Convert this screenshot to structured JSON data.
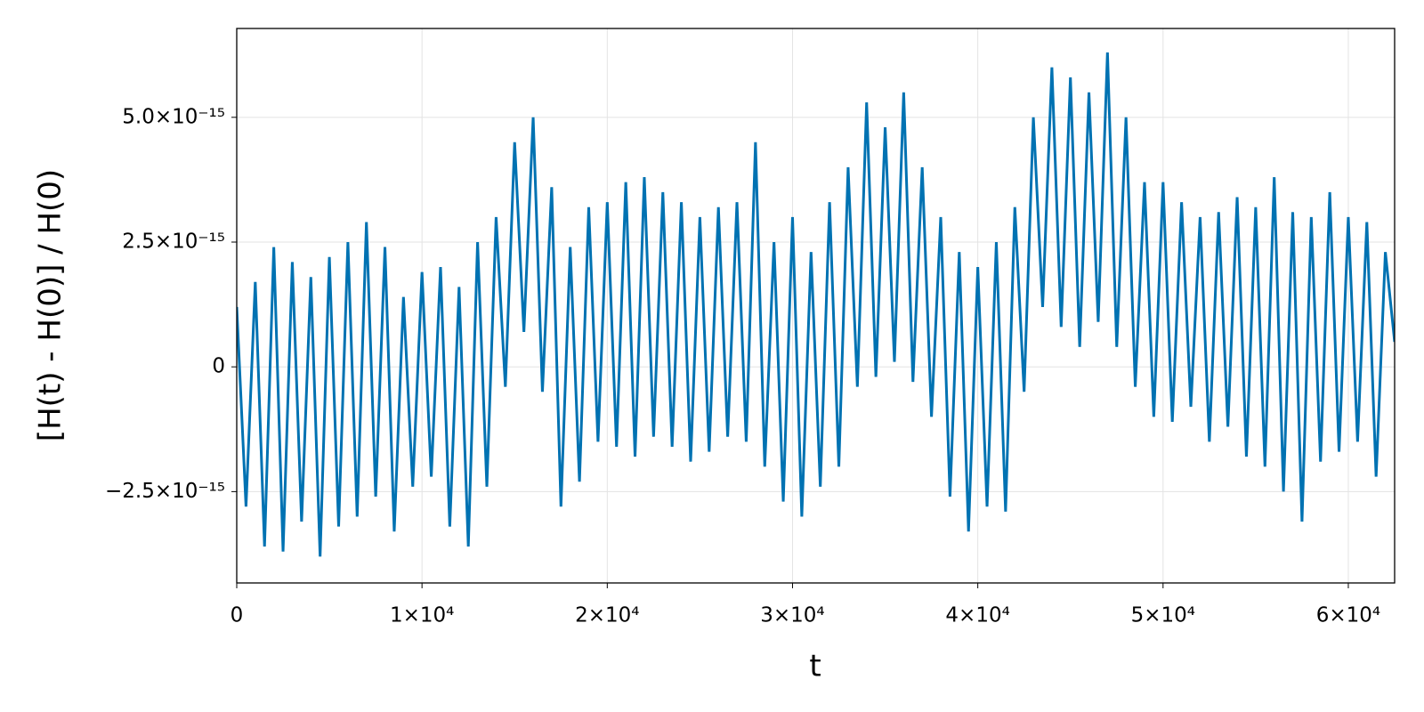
{
  "chart_data": {
    "type": "line",
    "xlabel": "t",
    "ylabel": "[H(t) - H(0)] / H(0)",
    "x": [
      0,
      500,
      1000,
      1500,
      2000,
      2500,
      3000,
      3500,
      4000,
      4500,
      5000,
      5500,
      6000,
      6500,
      7000,
      7500,
      8000,
      8500,
      9000,
      9500,
      10000,
      10500,
      11000,
      11500,
      12000,
      12500,
      13000,
      13500,
      14000,
      14500,
      15000,
      15500,
      16000,
      16500,
      17000,
      17500,
      18000,
      18500,
      19000,
      19500,
      20000,
      20500,
      21000,
      21500,
      22000,
      22500,
      23000,
      23500,
      24000,
      24500,
      25000,
      25500,
      26000,
      26500,
      27000,
      27500,
      28000,
      28500,
      29000,
      29500,
      30000,
      30500,
      31000,
      31500,
      32000,
      32500,
      33000,
      33500,
      34000,
      34500,
      35000,
      35500,
      36000,
      36500,
      37000,
      37500,
      38000,
      38500,
      39000,
      39500,
      40000,
      40500,
      41000,
      41500,
      42000,
      42500,
      43000,
      43500,
      44000,
      44500,
      45000,
      45500,
      46000,
      46500,
      47000,
      47500,
      48000,
      48500,
      49000,
      49500,
      50000,
      50500,
      51000,
      51500,
      52000,
      52500,
      53000,
      53500,
      54000,
      54500,
      55000,
      55500,
      56000,
      56500,
      57000,
      57500,
      58000,
      58500,
      59000,
      59500,
      60000,
      60500,
      61000,
      61500,
      62000,
      62500
    ],
    "series": [
      {
        "color": "#0072b2",
        "values": [
          1.2e-15,
          -2.8e-15,
          1.7e-15,
          -3.6e-15,
          2.4e-15,
          -3.7e-15,
          2.1e-15,
          -3.1e-15,
          1.8e-15,
          -3.8e-15,
          2.2e-15,
          -3.2e-15,
          2.5e-15,
          -3e-15,
          2.9e-15,
          -2.6e-15,
          2.4e-15,
          -3.3e-15,
          1.4e-15,
          -2.4e-15,
          1.9e-15,
          -2.2e-15,
          2e-15,
          -3.2e-15,
          1.6e-15,
          -3.6e-15,
          2.5e-15,
          -2.4e-15,
          3e-15,
          -4e-16,
          4.5e-15,
          7e-16,
          5e-15,
          -5e-16,
          3.6e-15,
          -2.8e-15,
          2.4e-15,
          -2.3e-15,
          3.2e-15,
          -1.5e-15,
          3.3e-15,
          -1.6e-15,
          3.7e-15,
          -1.8e-15,
          3.8e-15,
          -1.4e-15,
          3.5e-15,
          -1.6e-15,
          3.3e-15,
          -1.9e-15,
          3e-15,
          -1.7e-15,
          3.2e-15,
          -1.4e-15,
          3.3e-15,
          -1.5e-15,
          4.5e-15,
          -2e-15,
          2.5e-15,
          -2.7e-15,
          3e-15,
          -3e-15,
          2.3e-15,
          -2.4e-15,
          3.3e-15,
          -2e-15,
          4e-15,
          -4e-16,
          5.3e-15,
          -2e-16,
          4.8e-15,
          1e-16,
          5.5e-15,
          -3e-16,
          4e-15,
          -1e-15,
          3e-15,
          -2.6e-15,
          2.3e-15,
          -3.3e-15,
          2e-15,
          -2.8e-15,
          2.5e-15,
          -2.9e-15,
          3.2e-15,
          -5e-16,
          5e-15,
          1.2e-15,
          6e-15,
          8e-16,
          5.8e-15,
          4e-16,
          5.5e-15,
          9e-16,
          6.3e-15,
          4e-16,
          5e-15,
          -4e-16,
          3.7e-15,
          -1e-15,
          3.7e-15,
          -1.1e-15,
          3.3e-15,
          -8e-16,
          3e-15,
          -1.5e-15,
          3.1e-15,
          -1.2e-15,
          3.4e-15,
          -1.8e-15,
          3.2e-15,
          -2e-15,
          3.8e-15,
          -2.5e-15,
          3.1e-15,
          -3.1e-15,
          3e-15,
          -1.9e-15,
          3.5e-15,
          -1.7e-15,
          3e-15,
          -1.5e-15,
          2.9e-15,
          -2.2e-15,
          2.3e-15,
          5e-16
        ]
      }
    ],
    "xlim": [
      0,
      62500
    ],
    "xticks": [
      0,
      {
        "value": 10000,
        "label": "1×10⁴"
      },
      {
        "value": 20000,
        "label": "2×10⁴"
      },
      {
        "value": 30000,
        "label": "3×10⁴"
      },
      {
        "value": 40000,
        "label": "4×10⁴"
      },
      {
        "value": 50000,
        "label": "5×10⁴"
      },
      {
        "value": 60000,
        "label": "6×10⁴"
      }
    ],
    "ylim": [
      -4.33e-15,
      6.78e-15
    ],
    "yticks": [
      {
        "value": -2.5e-15,
        "label": "−2.5×10⁻¹⁵"
      },
      0,
      {
        "value": 2.5e-15,
        "label": "2.5×10⁻¹⁵"
      },
      {
        "value": 5e-15,
        "label": "5.0×10⁻¹⁵"
      }
    ],
    "grid": true
  }
}
